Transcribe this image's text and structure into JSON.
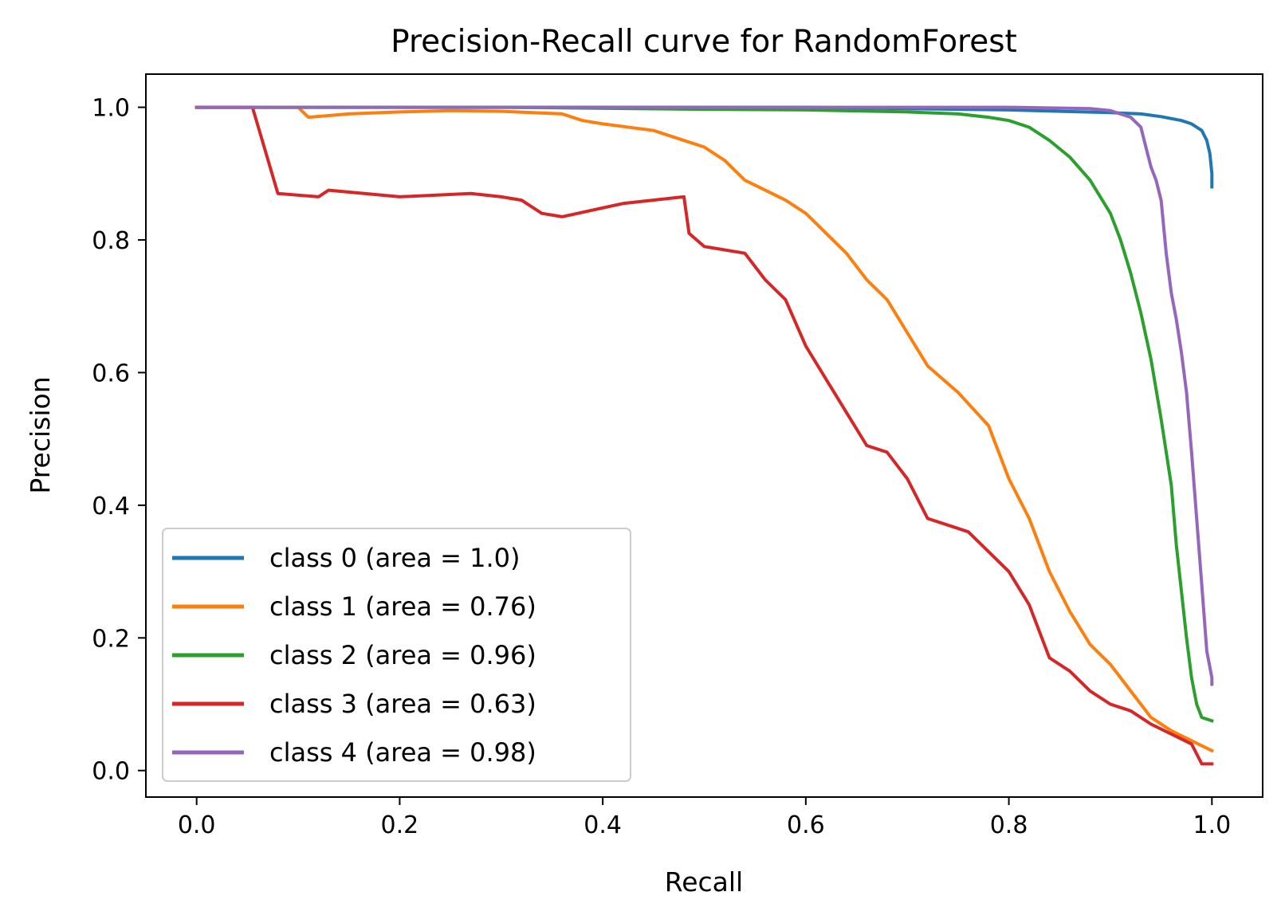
{
  "chart_data": {
    "type": "line",
    "title": "Precision-Recall curve for RandomForest",
    "xlabel": "Recall",
    "ylabel": "Precision",
    "xlim": [
      -0.05,
      1.05
    ],
    "ylim": [
      -0.04,
      1.05
    ],
    "xticks": [
      0.0,
      0.2,
      0.4,
      0.6,
      0.8,
      1.0
    ],
    "xtick_labels": [
      "0.0",
      "0.2",
      "0.4",
      "0.6",
      "0.8",
      "1.0"
    ],
    "yticks": [
      0.0,
      0.2,
      0.4,
      0.6,
      0.8,
      1.0
    ],
    "ytick_labels": [
      "0.0",
      "0.2",
      "0.4",
      "0.6",
      "0.8",
      "1.0"
    ],
    "grid": false,
    "legend": "lower-left",
    "series": [
      {
        "name": "class 0 (area = 1.0)",
        "color": "#1f77b4",
        "x": [
          0.0,
          0.2,
          0.4,
          0.6,
          0.7,
          0.8,
          0.85,
          0.9,
          0.93,
          0.95,
          0.97,
          0.98,
          0.99,
          0.995,
          0.998,
          1.0,
          1.0
        ],
        "y": [
          1.0,
          1.0,
          1.0,
          1.0,
          0.998,
          0.996,
          0.994,
          0.992,
          0.99,
          0.986,
          0.98,
          0.975,
          0.965,
          0.95,
          0.93,
          0.9,
          0.88
        ]
      },
      {
        "name": "class 1 (area = 0.76)",
        "color": "#ff7f0e",
        "x": [
          0.0,
          0.1,
          0.11,
          0.15,
          0.2,
          0.25,
          0.3,
          0.36,
          0.38,
          0.4,
          0.45,
          0.48,
          0.5,
          0.52,
          0.54,
          0.56,
          0.58,
          0.6,
          0.62,
          0.64,
          0.66,
          0.68,
          0.7,
          0.72,
          0.75,
          0.78,
          0.8,
          0.82,
          0.84,
          0.86,
          0.88,
          0.9,
          0.92,
          0.94,
          0.96,
          0.98,
          1.0
        ],
        "y": [
          1.0,
          1.0,
          0.985,
          0.99,
          0.993,
          0.995,
          0.994,
          0.99,
          0.98,
          0.975,
          0.965,
          0.95,
          0.94,
          0.92,
          0.89,
          0.875,
          0.86,
          0.84,
          0.81,
          0.78,
          0.74,
          0.71,
          0.66,
          0.61,
          0.57,
          0.52,
          0.44,
          0.38,
          0.3,
          0.24,
          0.19,
          0.16,
          0.12,
          0.08,
          0.06,
          0.045,
          0.03
        ]
      },
      {
        "name": "class 2 (area = 0.96)",
        "color": "#2ca02c",
        "x": [
          0.0,
          0.3,
          0.5,
          0.6,
          0.7,
          0.75,
          0.78,
          0.8,
          0.82,
          0.84,
          0.86,
          0.88,
          0.9,
          0.91,
          0.92,
          0.93,
          0.94,
          0.95,
          0.96,
          0.965,
          0.97,
          0.975,
          0.98,
          0.985,
          0.99,
          1.0
        ],
        "y": [
          1.0,
          1.0,
          0.997,
          0.996,
          0.993,
          0.99,
          0.985,
          0.98,
          0.97,
          0.95,
          0.925,
          0.89,
          0.84,
          0.8,
          0.75,
          0.69,
          0.62,
          0.53,
          0.43,
          0.34,
          0.27,
          0.2,
          0.14,
          0.1,
          0.08,
          0.075
        ]
      },
      {
        "name": "class 3 (area = 0.63)",
        "color": "#d62728",
        "x": [
          0.0,
          0.055,
          0.08,
          0.12,
          0.13,
          0.2,
          0.27,
          0.3,
          0.32,
          0.34,
          0.36,
          0.42,
          0.48,
          0.485,
          0.5,
          0.54,
          0.56,
          0.58,
          0.6,
          0.62,
          0.64,
          0.66,
          0.68,
          0.7,
          0.72,
          0.74,
          0.76,
          0.78,
          0.8,
          0.82,
          0.84,
          0.86,
          0.88,
          0.9,
          0.92,
          0.94,
          0.96,
          0.98,
          0.99,
          1.0
        ],
        "y": [
          1.0,
          1.0,
          0.87,
          0.865,
          0.875,
          0.865,
          0.87,
          0.865,
          0.86,
          0.84,
          0.835,
          0.855,
          0.865,
          0.81,
          0.79,
          0.78,
          0.74,
          0.71,
          0.64,
          0.59,
          0.54,
          0.49,
          0.48,
          0.44,
          0.38,
          0.37,
          0.36,
          0.33,
          0.3,
          0.25,
          0.17,
          0.15,
          0.12,
          0.1,
          0.09,
          0.07,
          0.055,
          0.04,
          0.01,
          0.01
        ]
      },
      {
        "name": "class 4 (area = 0.98)",
        "color": "#9467bd",
        "x": [
          0.0,
          0.5,
          0.8,
          0.88,
          0.9,
          0.92,
          0.93,
          0.935,
          0.94,
          0.945,
          0.95,
          0.955,
          0.96,
          0.965,
          0.97,
          0.975,
          0.98,
          0.985,
          0.99,
          0.995,
          1.0,
          1.0
        ],
        "y": [
          1.0,
          1.0,
          1.0,
          0.998,
          0.995,
          0.985,
          0.97,
          0.94,
          0.91,
          0.89,
          0.86,
          0.78,
          0.72,
          0.68,
          0.63,
          0.57,
          0.48,
          0.38,
          0.28,
          0.18,
          0.14,
          0.13
        ]
      }
    ]
  }
}
